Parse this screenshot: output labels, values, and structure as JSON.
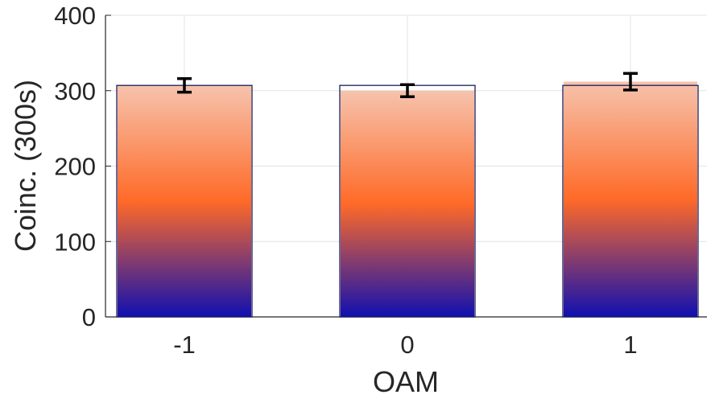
{
  "chart_data": {
    "type": "bar",
    "categories": [
      "-1",
      "0",
      "1"
    ],
    "values": [
      307,
      300,
      312
    ],
    "outline_values": [
      307,
      307,
      307
    ],
    "error": [
      9,
      8,
      11
    ],
    "xlabel": "OAM",
    "ylabel": "Coinc. (300s)",
    "ylim": [
      0,
      400
    ],
    "yticks": [
      "0",
      "100",
      "200",
      "300",
      "400"
    ],
    "grid": true,
    "gradient_colors": [
      "#1010b0",
      "#ff6a28",
      "#f6c3ad"
    ],
    "outline_color": "#1b1b5a",
    "error_color": "#000000"
  }
}
